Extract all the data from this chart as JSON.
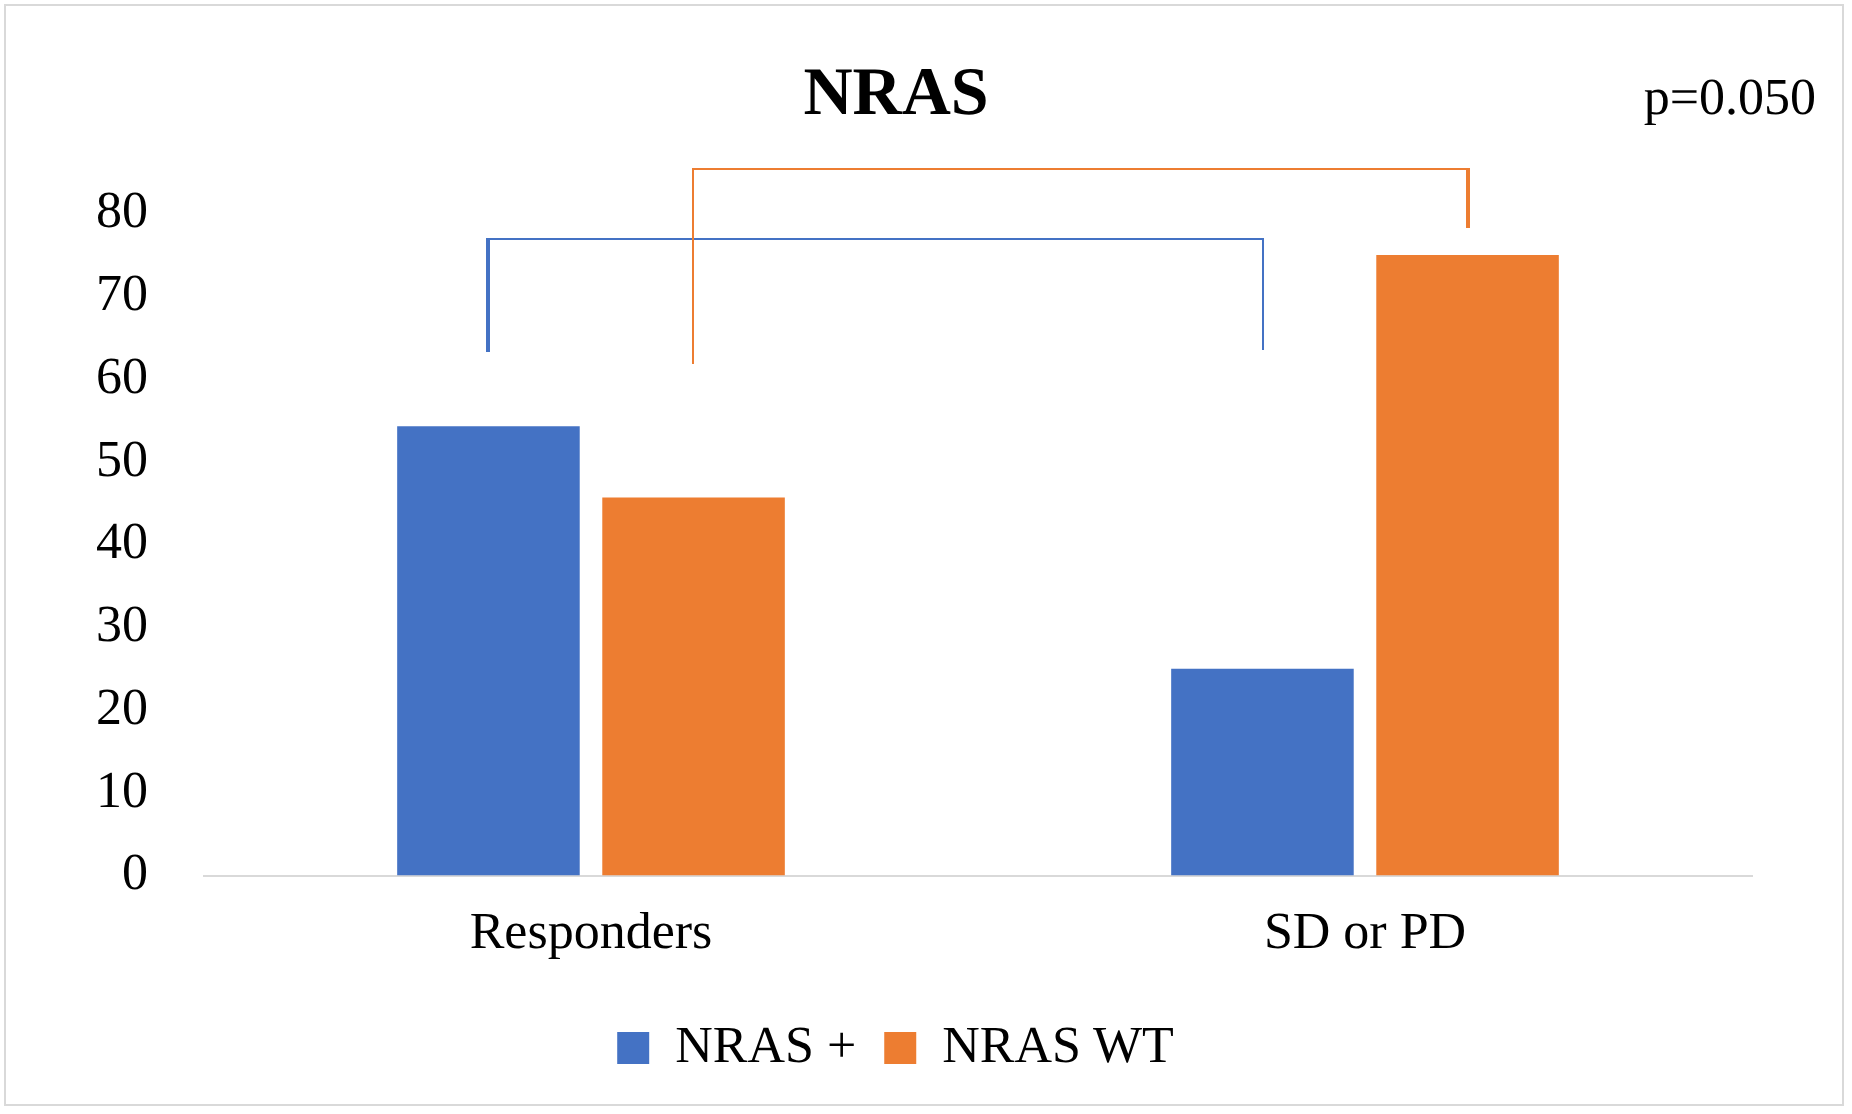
{
  "chart_data": {
    "type": "bar",
    "title": "NRAS",
    "categories": [
      "Responders",
      "SD or PD"
    ],
    "series": [
      {
        "name": "NRAS +",
        "color": "#4472c4",
        "values": [
          54.3,
          25
        ]
      },
      {
        "name": "NRAS WT",
        "color": "#ed7d31",
        "values": [
          45.7,
          75
        ]
      }
    ],
    "ylim": [
      0,
      80
    ],
    "yticks": [
      0,
      10,
      20,
      30,
      40,
      50,
      60,
      70,
      80
    ],
    "grid": false,
    "legend": "bottom",
    "annotations": [
      "p=0.050"
    ]
  }
}
